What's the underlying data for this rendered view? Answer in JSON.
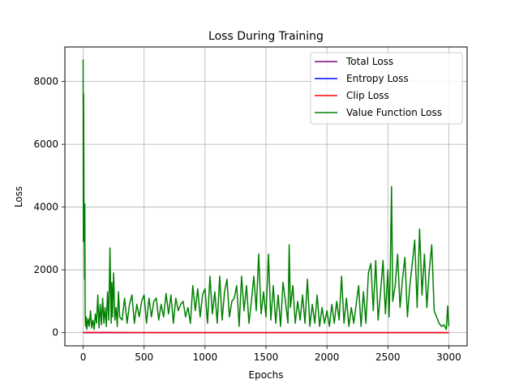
{
  "chart_data": {
    "type": "line",
    "title": "Loss During Training",
    "xlabel": "Epochs",
    "ylabel": "Loss",
    "xlim": [
      -150,
      3150
    ],
    "ylim": [
      -420,
      9100
    ],
    "xticks": [
      0,
      500,
      1000,
      1500,
      2000,
      2500,
      3000
    ],
    "yticks": [
      0,
      2000,
      4000,
      6000,
      8000
    ],
    "grid": true,
    "legend_position": "top-right",
    "series": [
      {
        "name": "Total Loss",
        "color": "#800080",
        "x": [
          0,
          500,
          1000,
          1500,
          2000,
          2500,
          3000
        ],
        "values": [
          5,
          3,
          3,
          3,
          3,
          3,
          3
        ]
      },
      {
        "name": "Entropy Loss",
        "color": "#0000ff",
        "x": [
          0,
          500,
          1000,
          1500,
          2000,
          2500,
          3000
        ],
        "values": [
          0,
          0,
          0,
          0,
          0,
          0,
          0
        ]
      },
      {
        "name": "Clip Loss",
        "color": "#ff0000",
        "x": [
          0,
          500,
          1000,
          1500,
          2000,
          2500,
          3000
        ],
        "values": [
          5,
          3,
          3,
          3,
          3,
          3,
          3
        ]
      },
      {
        "name": "Value Function Loss",
        "color": "#008000",
        "x": [
          0,
          2,
          4,
          6,
          8,
          10,
          12,
          14,
          16,
          18,
          20,
          25,
          30,
          40,
          50,
          60,
          70,
          80,
          90,
          100,
          110,
          120,
          130,
          140,
          150,
          160,
          170,
          180,
          190,
          200,
          210,
          220,
          230,
          235,
          240,
          250,
          260,
          270,
          280,
          290,
          300,
          320,
          340,
          360,
          380,
          400,
          420,
          440,
          460,
          480,
          500,
          520,
          540,
          560,
          580,
          600,
          620,
          640,
          660,
          680,
          700,
          720,
          740,
          760,
          780,
          800,
          820,
          840,
          860,
          880,
          900,
          920,
          940,
          960,
          980,
          1000,
          1020,
          1040,
          1060,
          1080,
          1100,
          1120,
          1140,
          1160,
          1180,
          1200,
          1220,
          1240,
          1260,
          1280,
          1300,
          1320,
          1340,
          1360,
          1380,
          1400,
          1420,
          1440,
          1460,
          1480,
          1500,
          1520,
          1540,
          1560,
          1580,
          1600,
          1620,
          1640,
          1660,
          1680,
          1690,
          1700,
          1720,
          1740,
          1760,
          1780,
          1800,
          1820,
          1840,
          1860,
          1880,
          1900,
          1920,
          1940,
          1960,
          1980,
          2000,
          2020,
          2040,
          2060,
          2080,
          2100,
          2120,
          2140,
          2160,
          2180,
          2200,
          2220,
          2240,
          2260,
          2280,
          2300,
          2320,
          2340,
          2360,
          2380,
          2400,
          2420,
          2440,
          2460,
          2480,
          2500,
          2510,
          2520,
          2530,
          2540,
          2560,
          2580,
          2600,
          2620,
          2640,
          2660,
          2680,
          2700,
          2720,
          2740,
          2760,
          2780,
          2800,
          2820,
          2840,
          2860,
          2880,
          2900,
          2920,
          2940,
          2960,
          2980,
          2990,
          3000
        ],
        "values": [
          8700,
          2900,
          7600,
          5500,
          3000,
          4000,
          1700,
          4100,
          600,
          300,
          200,
          500,
          100,
          450,
          200,
          700,
          150,
          400,
          100,
          600,
          300,
          1200,
          150,
          900,
          250,
          1100,
          300,
          800,
          200,
          1300,
          400,
          2700,
          300,
          1600,
          500,
          1900,
          400,
          800,
          200,
          1300,
          500,
          400,
          1100,
          300,
          900,
          1200,
          300,
          900,
          500,
          1000,
          1200,
          300,
          1100,
          500,
          1000,
          1100,
          400,
          900,
          500,
          1250,
          600,
          1200,
          300,
          1100,
          700,
          900,
          1000,
          500,
          800,
          300,
          1500,
          700,
          1400,
          500,
          1200,
          1400,
          300,
          1800,
          600,
          1300,
          300,
          1800,
          400,
          1300,
          1700,
          500,
          1000,
          1100,
          1500,
          200,
          1800,
          700,
          1500,
          300,
          1000,
          1800,
          700,
          2500,
          600,
          1300,
          500,
          2500,
          400,
          1500,
          300,
          1200,
          200,
          1600,
          1000,
          300,
          2800,
          800,
          1500,
          300,
          1000,
          400,
          1200,
          300,
          1700,
          200,
          900,
          300,
          1200,
          200,
          800,
          300,
          700,
          200,
          900,
          300,
          1000,
          400,
          1800,
          300,
          1100,
          200,
          800,
          300,
          900,
          1500,
          200,
          1300,
          300,
          1900,
          2200,
          700,
          2300,
          400,
          1300,
          2300,
          600,
          2000,
          500,
          2000,
          4650,
          1000,
          1500,
          2500,
          800,
          1700,
          2400,
          500,
          1500,
          2200,
          2950,
          800,
          3300,
          1200,
          2500,
          800,
          2000,
          2800,
          700,
          500,
          300,
          200,
          250,
          100,
          850,
          200
        ]
      }
    ]
  }
}
